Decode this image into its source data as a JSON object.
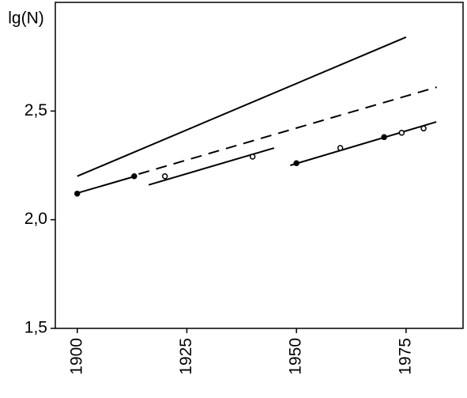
{
  "chart_data": {
    "type": "line",
    "y_label": "lg(N)",
    "xlim": [
      1895,
      1988
    ],
    "xticks": [
      1900,
      1925,
      1950,
      1975
    ],
    "ylim": [
      1.5,
      3.0
    ],
    "yticks": [
      {
        "value": 1.5,
        "label": "1,5"
      },
      {
        "value": 2.0,
        "label": "2,0"
      },
      {
        "value": 2.5,
        "label": "2,5"
      }
    ],
    "series": [
      {
        "style": "solid",
        "color": "#000000",
        "x": [
          1900,
          1975
        ],
        "values": [
          2.2,
          2.84
        ]
      },
      {
        "style": "dashed",
        "color": "#000000",
        "x": [
          1914,
          1982
        ],
        "values": [
          2.21,
          2.61
        ]
      },
      {
        "style": "solid",
        "color": "#000000",
        "x": [
          1899.6,
          1913.2
        ],
        "values": [
          2.12,
          2.2
        ]
      },
      {
        "style": "solid",
        "color": "#000000",
        "x": [
          1916.3,
          1944.9
        ],
        "values": [
          2.16,
          2.33
        ]
      },
      {
        "style": "solid",
        "color": "#000000",
        "x": [
          1948.6,
          1981.9
        ],
        "values": [
          2.25,
          2.45
        ]
      },
      {
        "style": "filled-points",
        "color": "#000000",
        "x": [
          1900,
          1913,
          1950,
          1970
        ],
        "values": [
          2.12,
          2.2,
          2.26,
          2.38
        ]
      },
      {
        "style": "open-points",
        "color": "#000000",
        "x": [
          1920,
          1940,
          1960,
          1974,
          1979
        ],
        "values": [
          2.2,
          2.29,
          2.33,
          2.4,
          2.42
        ]
      }
    ]
  }
}
